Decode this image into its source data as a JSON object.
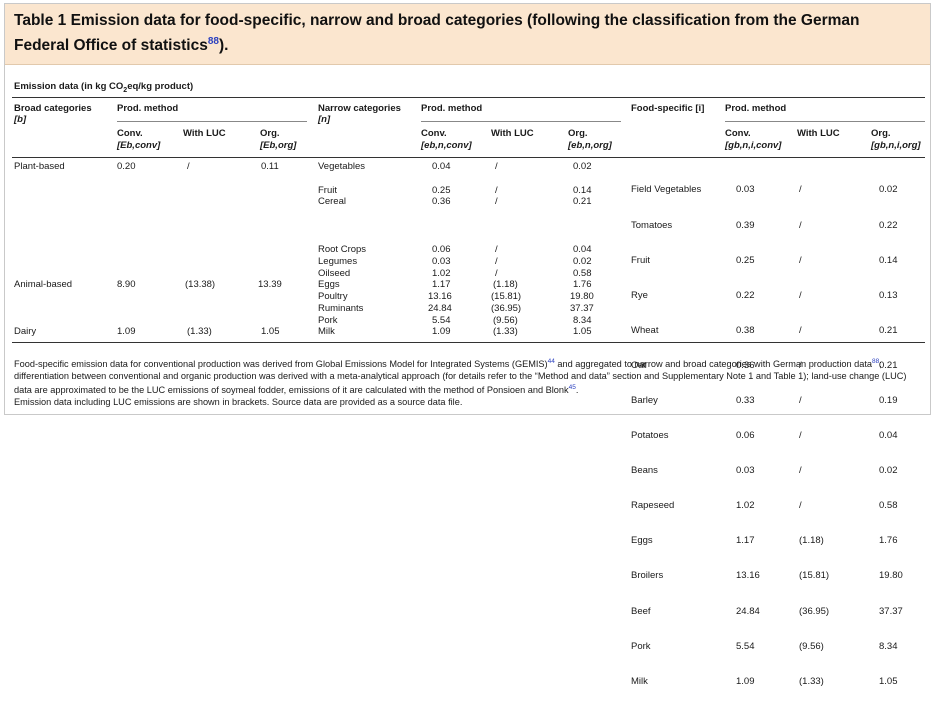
{
  "title": {
    "text": "Table 1 Emission data for food-specific, narrow and broad categories (following the classification from the German Federal Office of statistics",
    "ref": "88",
    "end": ")."
  },
  "caption": {
    "before": "Emission data (in kg CO",
    "sub": "2",
    "after": "eq/kg product)"
  },
  "headers": {
    "broad": "Broad categories",
    "broad_sym": "[b]",
    "narrow": "Narrow categories",
    "narrow_sym": "[n]",
    "food": "Food-specific [i]",
    "prod_method": "Prod. method",
    "conv": "Conv.",
    "with_luc": "With LUC",
    "org": "Org.",
    "b_conv": "[Eb,conv]",
    "b_org": "[Eb,org]",
    "n_conv": "[eb,n,conv]",
    "n_org": "[eb,n,org]",
    "i_conv": "[gb,n,i,conv]",
    "i_org": "[gb,n,i,org]"
  },
  "broad_rows": [
    {
      "name": "Plant-based",
      "conv": "0.20",
      "luc": "/",
      "org": "0.11"
    },
    {
      "name": "Animal-based",
      "conv": "8.90",
      "luc": "(13.38)",
      "org": "13.39"
    },
    {
      "name": "Dairy",
      "conv": "1.09",
      "luc": "(1.33)",
      "org": "1.05"
    }
  ],
  "narrow_rows": [
    {
      "name": "Vegetables",
      "conv": "0.04",
      "luc": "/",
      "org": "0.02"
    },
    {
      "name": "Fruit",
      "conv": "0.25",
      "luc": "/",
      "org": "0.14"
    },
    {
      "name": "Cereal",
      "conv": "0.36",
      "luc": "/",
      "org": "0.21"
    },
    {
      "name": "Root Crops",
      "conv": "0.06",
      "luc": "/",
      "org": "0.04"
    },
    {
      "name": "Legumes",
      "conv": "0.03",
      "luc": "/",
      "org": "0.02"
    },
    {
      "name": "Oilseed",
      "conv": "1.02",
      "luc": "/",
      "org": "0.58"
    },
    {
      "name": "Eggs",
      "conv": "1.17",
      "luc": "(1.18)",
      "org": "1.76"
    },
    {
      "name": "Poultry",
      "conv": "13.16",
      "luc": "(15.81)",
      "org": "19.80"
    },
    {
      "name": "Ruminants",
      "conv": "24.84",
      "luc": "(36.95)",
      "org": "37.37"
    },
    {
      "name": "Pork",
      "conv": "5.54",
      "luc": "(9.56)",
      "org": "8.34"
    },
    {
      "name": "Milk",
      "conv": "1.09",
      "luc": "(1.33)",
      "org": "1.05"
    }
  ],
  "food_rows": [
    {
      "name": "Field Vegetables",
      "conv": "0.03",
      "luc": "/",
      "org": "0.02"
    },
    {
      "name": "Tomatoes",
      "conv": "0.39",
      "luc": "/",
      "org": "0.22"
    },
    {
      "name": "Fruit",
      "conv": "0.25",
      "luc": "/",
      "org": "0.14"
    },
    {
      "name": "Rye",
      "conv": "0.22",
      "luc": "/",
      "org": "0.13"
    },
    {
      "name": "Wheat",
      "conv": "0.38",
      "luc": "/",
      "org": "0.21"
    },
    {
      "name": "Oat",
      "conv": "0.36",
      "luc": "/",
      "org": "0.21"
    },
    {
      "name": "Barley",
      "conv": "0.33",
      "luc": "/",
      "org": "0.19"
    },
    {
      "name": "Potatoes",
      "conv": "0.06",
      "luc": "/",
      "org": "0.04"
    },
    {
      "name": "Beans",
      "conv": "0.03",
      "luc": "/",
      "org": "0.02"
    },
    {
      "name": "Rapeseed",
      "conv": "1.02",
      "luc": "/",
      "org": "0.58"
    },
    {
      "name": "Eggs",
      "conv": "1.17",
      "luc": "(1.18)",
      "org": "1.76"
    },
    {
      "name": "Broilers",
      "conv": "13.16",
      "luc": "(15.81)",
      "org": "19.80"
    },
    {
      "name": "Beef",
      "conv": "24.84",
      "luc": "(36.95)",
      "org": "37.37"
    },
    {
      "name": "Pork",
      "conv": "5.54",
      "luc": "(9.56)",
      "org": "8.34"
    },
    {
      "name": "Milk",
      "conv": "1.09",
      "luc": "(1.33)",
      "org": "1.05"
    }
  ],
  "footnote": {
    "p1": "Food-specific emission data for conventional production was derived from Global Emissions Model for Integrated Systems (GEMIS)",
    "r1": "44",
    "p2": " and aggregated to narrow and broad categories with German production data",
    "r2": "88",
    "p3": "; differentiation between conventional and organic production was derived with a meta-analytical approach (for details refer to the “Method and data” section and Supplementary Note 1 and Table 1); land-use change (LUC) data are approximated to be the LUC emissions of soymeal fodder, emissions of it are calculated with the method of Ponsioen and Blonk",
    "r3": "45",
    "p4": ".",
    "line2": "Emission data including LUC emissions are shown in brackets. Source data are provided as a source data file."
  }
}
